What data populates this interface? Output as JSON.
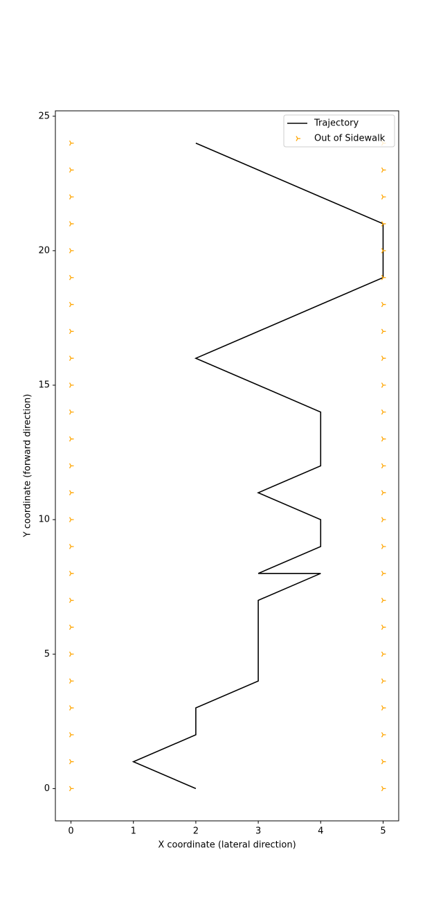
{
  "chart_data": {
    "type": "line",
    "xlabel": "X coordinate (lateral direction)",
    "ylabel": "Y coordinate (forward direction)",
    "xlim": [
      -0.25,
      5.25
    ],
    "ylim": [
      -1.2,
      25.2
    ],
    "xticks": [
      0,
      1,
      2,
      3,
      4,
      5
    ],
    "yticks": [
      0,
      5,
      10,
      15,
      20,
      25
    ],
    "grid": false,
    "legend": "upper right",
    "series": [
      {
        "name": "Trajectory",
        "type": "line",
        "color": "#000000",
        "x": [
          2,
          1,
          2,
          2,
          3,
          3,
          3,
          3,
          4,
          3,
          4,
          4,
          3,
          4,
          4,
          4,
          3,
          2,
          3,
          4,
          5,
          5,
          5,
          4,
          3,
          2
        ],
        "y": [
          0,
          1,
          2,
          3,
          4,
          5,
          6,
          7,
          8,
          8,
          9,
          10,
          11,
          12,
          13,
          14,
          15,
          16,
          17,
          18,
          19,
          20,
          21,
          22,
          23,
          24
        ]
      },
      {
        "name": "Out of Sidewalk",
        "type": "scatter",
        "color": "#ffa500",
        "marker": "tri_right",
        "x": [
          0,
          0,
          0,
          0,
          0,
          0,
          0,
          0,
          0,
          0,
          0,
          0,
          0,
          0,
          0,
          0,
          0,
          0,
          0,
          0,
          0,
          0,
          0,
          0,
          0,
          5,
          5,
          5,
          5,
          5,
          5,
          5,
          5,
          5,
          5,
          5,
          5,
          5,
          5,
          5,
          5,
          5,
          5,
          5,
          5,
          5,
          5,
          5,
          5,
          5
        ],
        "y": [
          0,
          1,
          2,
          3,
          4,
          5,
          6,
          7,
          8,
          9,
          10,
          11,
          12,
          13,
          14,
          15,
          16,
          17,
          18,
          19,
          20,
          21,
          22,
          23,
          24,
          0,
          1,
          2,
          3,
          4,
          5,
          6,
          7,
          8,
          9,
          10,
          11,
          12,
          13,
          14,
          15,
          16,
          17,
          18,
          19,
          20,
          21,
          22,
          23,
          24
        ]
      }
    ]
  }
}
